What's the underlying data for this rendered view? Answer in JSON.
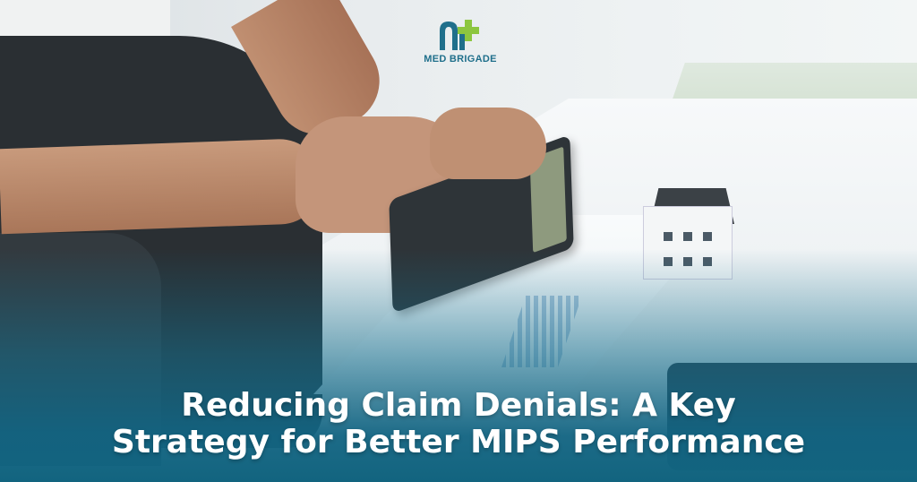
{
  "brand": {
    "name": "MED BRIGADE",
    "colors": {
      "primary": "#1f6f8b",
      "accent": "#8cc63f"
    }
  },
  "headline": {
    "line1": "Reducing Claim Denials: A Key",
    "line2": "Strategy for Better MIPS Performance"
  },
  "colors": {
    "overlay": "#12647f",
    "text": "#ffffff"
  }
}
